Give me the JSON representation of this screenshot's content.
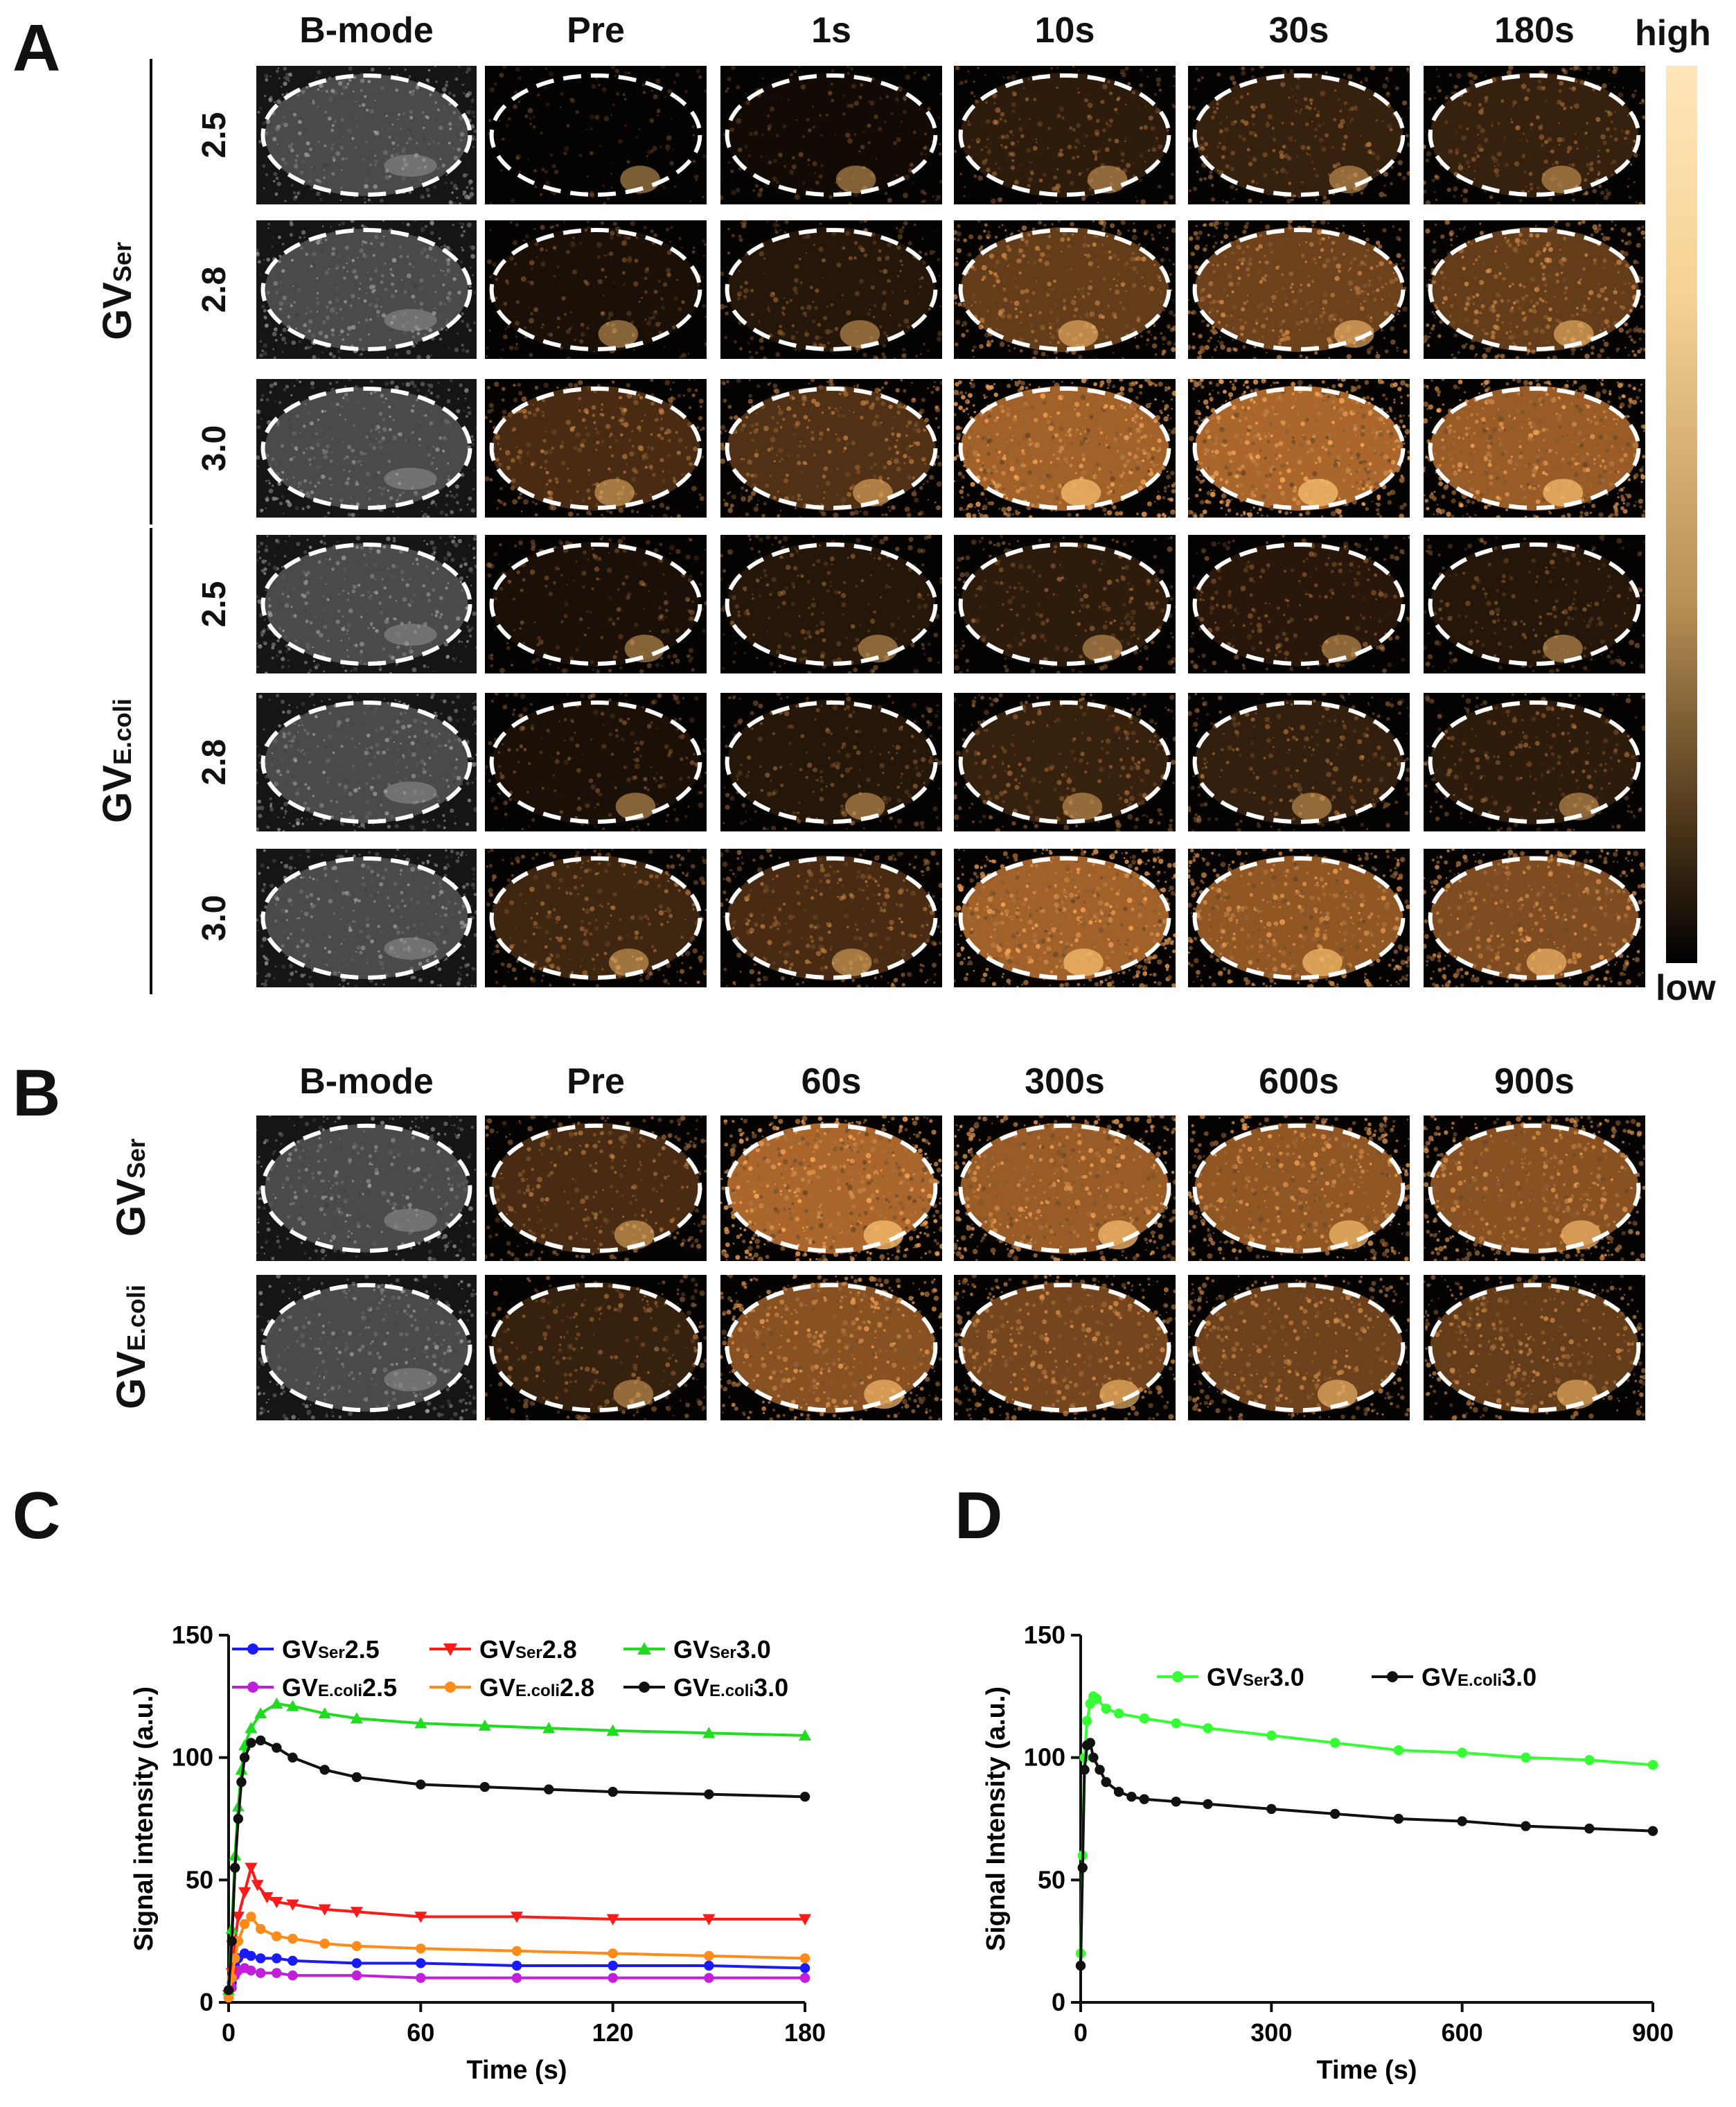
{
  "panels": {
    "A": "A",
    "B": "B",
    "C": "C",
    "D": "D"
  },
  "panel_a": {
    "columns": [
      "B-mode",
      "Pre",
      "1s",
      "10s",
      "30s",
      "180s"
    ],
    "groups": [
      {
        "prefix": "GV",
        "sub": "Ser",
        "rows": [
          "2.5",
          "2.8",
          "3.0"
        ]
      },
      {
        "prefix": "GV",
        "sub": "E.coli",
        "rows": [
          "2.5",
          "2.8",
          "3.0"
        ]
      }
    ],
    "colorbar": {
      "high": "high",
      "low": "low",
      "top_color": "#ffe6b8",
      "bottom_color": "#000000"
    }
  },
  "panel_b": {
    "columns": [
      "B-mode",
      "Pre",
      "60s",
      "300s",
      "600s",
      "900s"
    ],
    "groups": [
      {
        "prefix": "GV",
        "sub": "Ser"
      },
      {
        "prefix": "GV",
        "sub": "E.coli"
      }
    ]
  },
  "chart_data": [
    {
      "type": "line",
      "panel": "C",
      "xlabel": "Time (s)",
      "ylabel": "Signal intensity (a.u.)",
      "xlim": [
        0,
        180
      ],
      "ylim": [
        0,
        150
      ],
      "xticks": [
        0,
        60,
        120,
        180
      ],
      "yticks": [
        0,
        50,
        100,
        150
      ],
      "series": [
        {
          "name": "GVSer2.5",
          "prefix": "GV",
          "sub": "Ser",
          "suffix": "2.5",
          "color": "#1a1aff",
          "marker": "circle",
          "x": [
            0,
            1,
            2,
            3,
            5,
            7,
            10,
            15,
            20,
            40,
            60,
            90,
            120,
            150,
            180
          ],
          "y": [
            2,
            8,
            15,
            18,
            20,
            19,
            18,
            18,
            17,
            16,
            16,
            15,
            15,
            15,
            14
          ]
        },
        {
          "name": "GVE.coli2.5",
          "prefix": "GV",
          "sub": "E.coli",
          "suffix": "2.5",
          "color": "#c21fdc",
          "marker": "circle",
          "x": [
            0,
            1,
            2,
            3,
            5,
            7,
            10,
            15,
            20,
            40,
            60,
            90,
            120,
            150,
            180
          ],
          "y": [
            2,
            6,
            11,
            13,
            14,
            13,
            12,
            12,
            11,
            11,
            10,
            10,
            10,
            10,
            10
          ]
        },
        {
          "name": "GVSer2.8",
          "prefix": "GV",
          "sub": "Ser",
          "suffix": "2.8",
          "color": "#ff1a1a",
          "marker": "triangle-down",
          "x": [
            0,
            1,
            2,
            3,
            5,
            7,
            9,
            12,
            15,
            20,
            30,
            40,
            60,
            90,
            120,
            150,
            180
          ],
          "y": [
            3,
            12,
            25,
            35,
            45,
            55,
            48,
            43,
            41,
            40,
            38,
            37,
            35,
            35,
            34,
            34,
            34
          ]
        },
        {
          "name": "GVE.coli2.8",
          "prefix": "GV",
          "sub": "E.coli",
          "suffix": "2.8",
          "color": "#ff8c1a",
          "marker": "circle",
          "x": [
            0,
            1,
            2,
            3,
            5,
            7,
            10,
            15,
            20,
            30,
            40,
            60,
            90,
            120,
            150,
            180
          ],
          "y": [
            2,
            10,
            18,
            25,
            32,
            35,
            30,
            27,
            26,
            24,
            23,
            22,
            21,
            20,
            19,
            18
          ]
        },
        {
          "name": "GVSer3.0",
          "prefix": "GV",
          "sub": "Ser",
          "suffix": "3.0",
          "color": "#1fdc1f",
          "marker": "triangle-up",
          "x": [
            0,
            1,
            2,
            3,
            4,
            5,
            7,
            10,
            15,
            20,
            30,
            40,
            60,
            80,
            100,
            120,
            150,
            180
          ],
          "y": [
            5,
            30,
            60,
            80,
            95,
            105,
            112,
            118,
            122,
            121,
            118,
            116,
            114,
            113,
            112,
            111,
            110,
            109
          ]
        },
        {
          "name": "GVE.coli3.0",
          "prefix": "GV",
          "sub": "E.coli",
          "suffix": "3.0",
          "color": "#111111",
          "marker": "circle",
          "x": [
            0,
            1,
            2,
            3,
            4,
            5,
            7,
            10,
            15,
            20,
            30,
            40,
            60,
            80,
            100,
            120,
            150,
            180
          ],
          "y": [
            5,
            25,
            55,
            75,
            90,
            100,
            106,
            107,
            104,
            100,
            95,
            92,
            89,
            88,
            87,
            86,
            85,
            84
          ]
        }
      ]
    },
    {
      "type": "line",
      "panel": "D",
      "xlabel": "Time (s)",
      "ylabel": "Signal Intensity (a.u.)",
      "xlim": [
        0,
        900
      ],
      "ylim": [
        0,
        150
      ],
      "xticks": [
        0,
        300,
        600,
        900
      ],
      "yticks": [
        0,
        50,
        100,
        150
      ],
      "series": [
        {
          "name": "GVSer3.0",
          "prefix": "GV",
          "sub": "Ser",
          "suffix": "3.0",
          "color": "#33ff33",
          "marker": "circle",
          "x": [
            0,
            3,
            6,
            10,
            15,
            20,
            25,
            40,
            60,
            100,
            150,
            200,
            300,
            400,
            500,
            600,
            700,
            800,
            900
          ],
          "y": [
            20,
            60,
            100,
            115,
            122,
            125,
            124,
            120,
            118,
            116,
            114,
            112,
            109,
            106,
            103,
            102,
            100,
            99,
            97
          ]
        },
        {
          "name": "GVE.coli3.0",
          "prefix": "GV",
          "sub": "E.coli",
          "suffix": "3.0",
          "color": "#111111",
          "marker": "circle",
          "x": [
            0,
            3,
            6,
            10,
            15,
            20,
            30,
            40,
            60,
            80,
            100,
            150,
            200,
            300,
            400,
            500,
            600,
            700,
            800,
            900
          ],
          "y": [
            15,
            55,
            95,
            105,
            106,
            100,
            95,
            90,
            86,
            84,
            83,
            82,
            81,
            79,
            77,
            75,
            74,
            72,
            71,
            70
          ]
        }
      ]
    }
  ]
}
